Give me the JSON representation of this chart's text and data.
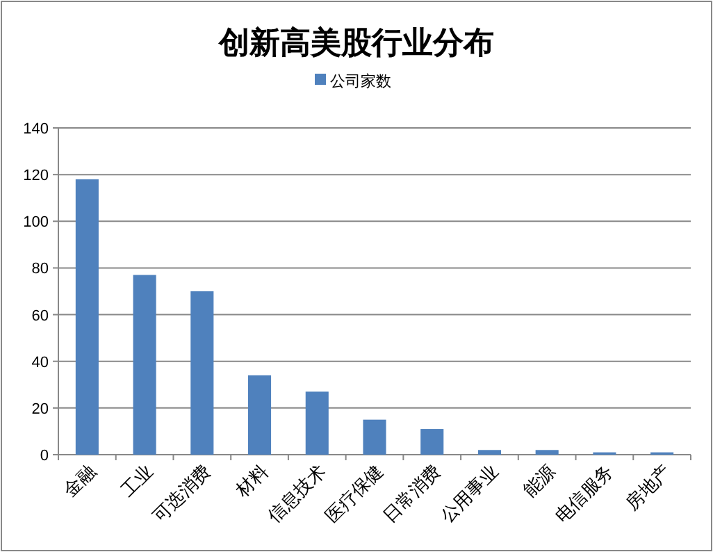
{
  "chart_data": {
    "type": "bar",
    "title": "创新高美股行业分布",
    "categories": [
      "金融",
      "工业",
      "可选消费",
      "材料",
      "信息技术",
      "医疗保健",
      "日常消费",
      "公用事业",
      "能源",
      "电信服务",
      "房地产"
    ],
    "series": [
      {
        "name": "公司家数",
        "color": "#4f81bd",
        "values": [
          118,
          77,
          70,
          34,
          27,
          15,
          11,
          2,
          2,
          1,
          1
        ]
      }
    ],
    "ylim": [
      0,
      140
    ],
    "yticks": [
      0,
      20,
      40,
      60,
      80,
      100,
      120,
      140
    ],
    "grid": "y",
    "legend": "top"
  }
}
